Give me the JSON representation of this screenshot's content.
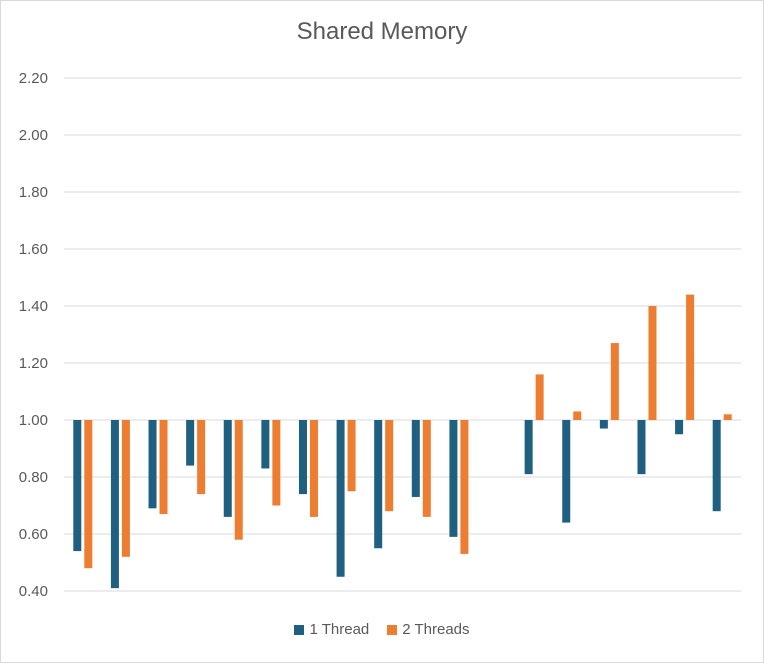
{
  "chart_data": {
    "type": "bar",
    "title": "Shared Memory",
    "xlabel": "",
    "ylabel": "",
    "ylim": [
      0.4,
      2.2
    ],
    "baseline": 1.0,
    "yticks": [
      "2.20",
      "2.00",
      "1.80",
      "1.60",
      "1.40",
      "1.20",
      "1.00",
      "0.80",
      "0.60",
      "0.40"
    ],
    "grid": true,
    "legend_position": "bottom",
    "categories": [
      "",
      "",
      "",
      "",
      "",
      "",
      "",
      "",
      "",
      "",
      "",
      "",
      "",
      "",
      "",
      "",
      "",
      ""
    ],
    "series": [
      {
        "name": "1 Thread",
        "color": "#1f5f7f",
        "values": [
          0.54,
          0.41,
          0.69,
          0.84,
          0.66,
          0.83,
          0.74,
          0.45,
          0.55,
          0.73,
          0.59,
          null,
          0.81,
          0.64,
          0.97,
          0.81,
          0.95,
          0.68
        ]
      },
      {
        "name": "2 Threads",
        "color": "#ed7d31",
        "values": [
          0.48,
          0.52,
          0.67,
          0.74,
          0.58,
          0.7,
          0.66,
          0.75,
          0.68,
          0.66,
          0.53,
          null,
          1.16,
          1.03,
          1.27,
          1.4,
          1.44,
          1.02
        ]
      }
    ]
  }
}
